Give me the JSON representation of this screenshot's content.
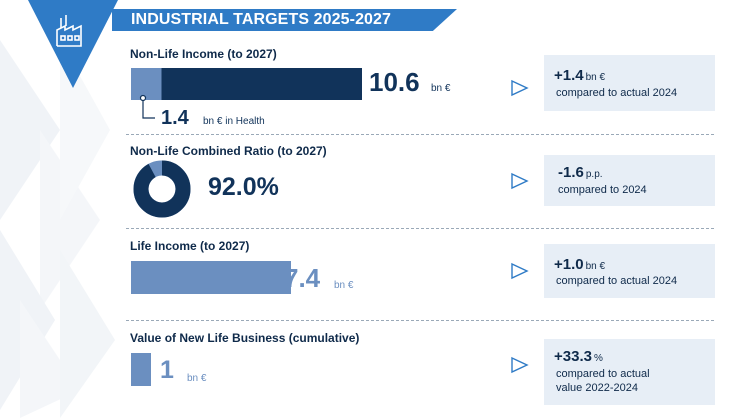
{
  "header": {
    "title": "INDUSTRIAL TARGETS 2025-2027",
    "icon": "factory-icon"
  },
  "colors": {
    "navy": "#11335a",
    "steel": "#6b8fc0",
    "accent": "#2f7bc6",
    "card": "#e7eef6"
  },
  "nonlife_income": {
    "title": "Non-Life Income (to 2027)",
    "value": "10.6",
    "unit": "bn €",
    "health_value": "1.4",
    "health_unit": "bn € in Health",
    "delta_value": "+1.4",
    "delta_unit": "bn €",
    "delta_note": "compared to actual 2024"
  },
  "combined_ratio": {
    "title": "Non-Life Combined Ratio (to 2027)",
    "value": "92.0%",
    "delta_value": "-1.6",
    "delta_unit": "p.p.",
    "delta_note": "compared to 2024"
  },
  "life_income": {
    "title": "Life Income (to 2027)",
    "value": "7.4",
    "unit": "bn €",
    "delta_value": "+1.0",
    "delta_unit": "bn €",
    "delta_note": "compared to actual 2024"
  },
  "new_life_business": {
    "title": "Value of New Life Business (cumulative)",
    "value": "1",
    "unit": "bn €",
    "delta_value": "+33.3",
    "delta_unit": "%",
    "delta_note_line1": "compared to actual",
    "delta_note_line2": "value 2022-2024"
  },
  "chart_data": [
    {
      "type": "bar",
      "title": "Non-Life Income (to 2027)",
      "categories": [
        "Non-Life Income"
      ],
      "series": [
        {
          "name": "Health",
          "values": [
            1.4
          ]
        },
        {
          "values": [
            9.2
          ]
        }
      ],
      "total": 10.6,
      "unit": "bn €"
    },
    {
      "type": "pie",
      "title": "Non-Life Combined Ratio (to 2027)",
      "values": [
        92.0,
        8.0
      ],
      "unit": "%"
    },
    {
      "type": "bar",
      "title": "Life Income (to 2027)",
      "categories": [
        "Life Income"
      ],
      "values": [
        7.4
      ],
      "unit": "bn €"
    },
    {
      "type": "bar",
      "title": "Value of New Life Business (cumulative)",
      "categories": [
        "Value of New Life Business"
      ],
      "values": [
        1
      ],
      "unit": "bn €"
    }
  ]
}
